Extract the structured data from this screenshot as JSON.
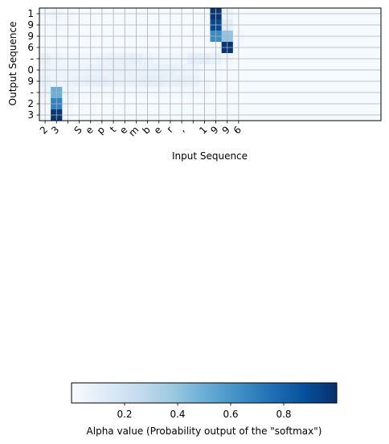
{
  "chart_data": [
    {
      "type": "heatmap",
      "xlabel": "Input Sequence",
      "ylabel": "Output Sequence",
      "x_ticks": [
        "2",
        "3",
        " ",
        "S",
        "e",
        "p",
        "t",
        "e",
        "m",
        "b",
        "e",
        "r",
        ",",
        " ",
        "1",
        "9",
        "9",
        "6"
      ],
      "y_ticks": [
        "1",
        "9",
        "9",
        "6",
        "-",
        "0",
        "9",
        "-",
        "2",
        "3"
      ],
      "n_columns": 30,
      "grid": true,
      "colormap": "Blues",
      "value_range": [
        0,
        1
      ],
      "values": [
        [
          0.02,
          0.04,
          0.02,
          0.01,
          0.01,
          0.01,
          0.01,
          0.01,
          0.01,
          0.01,
          0.01,
          0.01,
          0.01,
          0.01,
          0.01,
          0.98,
          0.06,
          0.01,
          0.01,
          0.01,
          0.01,
          0.01,
          0.01,
          0.01,
          0.01,
          0.01,
          0.01,
          0.01,
          0.01,
          0.01
        ],
        [
          0.02,
          0.02,
          0.02,
          0.01,
          0.01,
          0.01,
          0.01,
          0.01,
          0.01,
          0.01,
          0.01,
          0.01,
          0.01,
          0.01,
          0.01,
          0.9,
          0.1,
          0.01,
          0.01,
          0.01,
          0.01,
          0.01,
          0.01,
          0.01,
          0.01,
          0.01,
          0.01,
          0.01,
          0.01,
          0.01
        ],
        [
          0.01,
          0.01,
          0.01,
          0.01,
          0.01,
          0.01,
          0.01,
          0.01,
          0.01,
          0.01,
          0.01,
          0.01,
          0.01,
          0.01,
          0.01,
          0.65,
          0.4,
          0.02,
          0.01,
          0.01,
          0.01,
          0.01,
          0.01,
          0.01,
          0.01,
          0.01,
          0.01,
          0.01,
          0.01,
          0.01
        ],
        [
          0.01,
          0.01,
          0.01,
          0.01,
          0.01,
          0.01,
          0.01,
          0.01,
          0.01,
          0.01,
          0.01,
          0.01,
          0.01,
          0.01,
          0.01,
          0.02,
          0.98,
          0.01,
          0.01,
          0.01,
          0.01,
          0.01,
          0.01,
          0.01,
          0.01,
          0.01,
          0.01,
          0.01,
          0.01,
          0.01
        ],
        [
          0.08,
          0.05,
          0.04,
          0.04,
          0.04,
          0.06,
          0.07,
          0.08,
          0.09,
          0.06,
          0.04,
          0.04,
          0.04,
          0.09,
          0.1,
          0.08,
          0.04,
          0.01,
          0.01,
          0.01,
          0.01,
          0.01,
          0.01,
          0.01,
          0.01,
          0.01,
          0.01,
          0.01,
          0.01,
          0.01
        ],
        [
          0.06,
          0.05,
          0.05,
          0.05,
          0.06,
          0.07,
          0.07,
          0.07,
          0.07,
          0.08,
          0.08,
          0.08,
          0.06,
          0.05,
          0.03,
          0.02,
          0.01,
          0.01,
          0.01,
          0.01,
          0.01,
          0.01,
          0.01,
          0.01,
          0.01,
          0.01,
          0.01,
          0.01,
          0.01,
          0.01
        ],
        [
          0.08,
          0.05,
          0.06,
          0.07,
          0.08,
          0.09,
          0.08,
          0.07,
          0.08,
          0.09,
          0.09,
          0.08,
          0.08,
          0.07,
          0.04,
          0.02,
          0.01,
          0.01,
          0.01,
          0.01,
          0.01,
          0.01,
          0.01,
          0.01,
          0.01,
          0.01,
          0.01,
          0.01,
          0.01,
          0.01
        ],
        [
          0.06,
          0.5,
          0.05,
          0.02,
          0.02,
          0.02,
          0.02,
          0.02,
          0.02,
          0.02,
          0.02,
          0.02,
          0.02,
          0.02,
          0.02,
          0.01,
          0.01,
          0.01,
          0.01,
          0.01,
          0.01,
          0.01,
          0.01,
          0.01,
          0.01,
          0.01,
          0.01,
          0.01,
          0.01,
          0.01
        ],
        [
          0.03,
          0.68,
          0.04,
          0.01,
          0.01,
          0.01,
          0.01,
          0.01,
          0.01,
          0.01,
          0.01,
          0.01,
          0.01,
          0.01,
          0.01,
          0.01,
          0.01,
          0.01,
          0.01,
          0.01,
          0.01,
          0.01,
          0.01,
          0.01,
          0.01,
          0.01,
          0.01,
          0.01,
          0.01,
          0.01
        ],
        [
          0.02,
          0.98,
          0.02,
          0.01,
          0.01,
          0.01,
          0.01,
          0.01,
          0.01,
          0.01,
          0.01,
          0.01,
          0.01,
          0.01,
          0.01,
          0.01,
          0.01,
          0.01,
          0.01,
          0.01,
          0.01,
          0.01,
          0.01,
          0.01,
          0.01,
          0.01,
          0.01,
          0.01,
          0.01,
          0.01
        ]
      ]
    },
    {
      "type": "colorbar",
      "label": "Alpha value (Probability output of the \"softmax\")",
      "range": [
        0,
        1
      ],
      "ticks": [
        0.2,
        0.4,
        0.6,
        0.8
      ],
      "tick_labels": [
        "0.2",
        "0.4",
        "0.6",
        "0.8"
      ],
      "colormap": "Blues",
      "orientation": "horizontal"
    }
  ]
}
